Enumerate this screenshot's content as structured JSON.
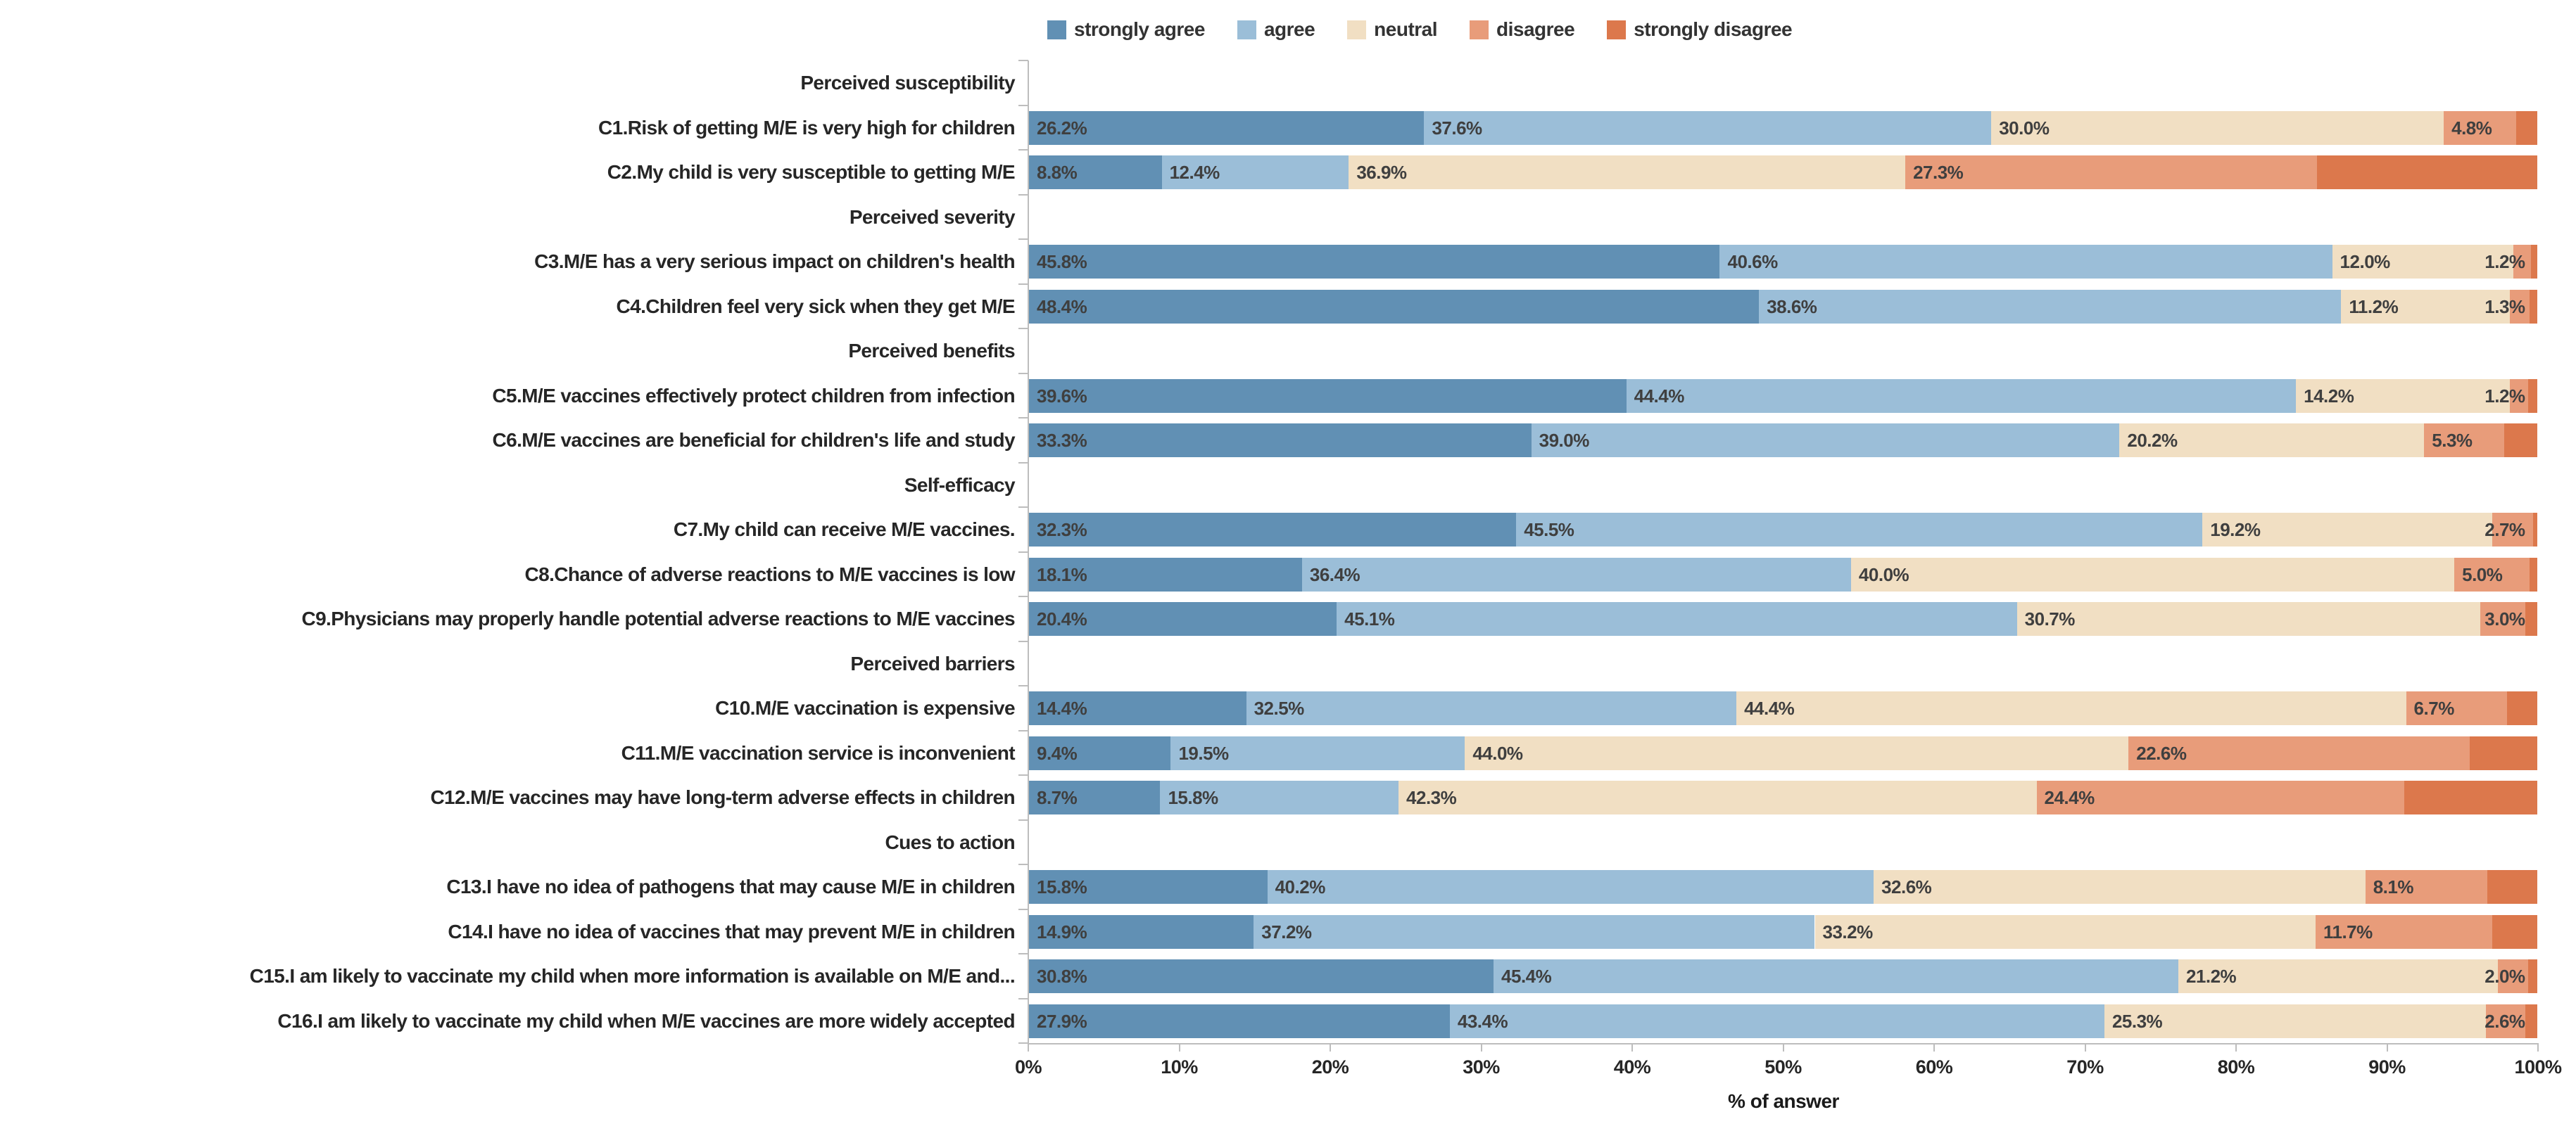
{
  "legend": {
    "items": [
      {
        "label": "strongly agree",
        "color": "#6190b4"
      },
      {
        "label": "agree",
        "color": "#9bbed8"
      },
      {
        "label": "neutral",
        "color": "#f1dfc3"
      },
      {
        "label": "disagree",
        "color": "#e89c7a"
      },
      {
        "label": "strongly disagree",
        "color": "#dc784c"
      }
    ]
  },
  "chart_data": {
    "type": "bar",
    "stacked": true,
    "orientation": "horizontal",
    "xlabel": "% of answer",
    "xlim": [
      0,
      100
    ],
    "grid": false,
    "legend_position": "top",
    "series_names": [
      "strongly agree",
      "agree",
      "neutral",
      "disagree",
      "strongly disagree"
    ],
    "axis": {
      "ticks": [
        "0%",
        "10%",
        "20%",
        "30%",
        "40%",
        "50%",
        "60%",
        "70%",
        "80%",
        "90%",
        "100%"
      ],
      "title": "% of answer"
    },
    "rows": [
      {
        "type": "header",
        "label": "Perceived susceptibility"
      },
      {
        "type": "item",
        "label": "C1.Risk of getting M/E is very high for children",
        "values": [
          26.2,
          37.6,
          30.0,
          4.8,
          1.4
        ],
        "value_labels": [
          "26.2%",
          "37.6%",
          "30.0%",
          "4.8%"
        ]
      },
      {
        "type": "item",
        "label": "C2.My child is very susceptible to getting M/E",
        "values": [
          8.8,
          12.4,
          36.9,
          27.3,
          14.6
        ],
        "value_labels": [
          "8.8%",
          "12.4%",
          "36.9%",
          "27.3%"
        ]
      },
      {
        "type": "header",
        "label": "Perceived severity"
      },
      {
        "type": "item",
        "label": "C3.M/E has a very serious impact on children's health",
        "values": [
          45.8,
          40.6,
          12.0,
          1.2,
          0.4
        ],
        "value_labels": [
          "45.8%",
          "40.6%",
          "12.0%",
          "1.2%"
        ]
      },
      {
        "type": "item",
        "label": "C4.Children feel very sick when they get M/E",
        "values": [
          48.4,
          38.6,
          11.2,
          1.3,
          0.5
        ],
        "value_labels": [
          "48.4%",
          "38.6%",
          "11.2%",
          "1.3%"
        ]
      },
      {
        "type": "header",
        "label": "Perceived benefits"
      },
      {
        "type": "item",
        "label": "C5.M/E vaccines effectively protect children from infection",
        "values": [
          39.6,
          44.4,
          14.2,
          1.2,
          0.6
        ],
        "value_labels": [
          "39.6%",
          "44.4%",
          "14.2%",
          "1.2%"
        ]
      },
      {
        "type": "item",
        "label": "C6.M/E vaccines are beneficial for children's life and study",
        "values": [
          33.3,
          39.0,
          20.2,
          5.3,
          2.2
        ],
        "value_labels": [
          "33.3%",
          "39.0%",
          "20.2%",
          "5.3%"
        ]
      },
      {
        "type": "header",
        "label": "Self-efficacy"
      },
      {
        "type": "item",
        "label": "C7.My child can receive M/E vaccines.",
        "values": [
          32.3,
          45.5,
          19.2,
          2.7,
          0.3
        ],
        "value_labels": [
          "32.3%",
          "45.5%",
          "19.2%",
          "2.7%"
        ]
      },
      {
        "type": "item",
        "label": "C8.Chance of adverse reactions to M/E vaccines is low",
        "values": [
          18.1,
          36.4,
          40.0,
          5.0,
          0.5
        ],
        "value_labels": [
          "18.1%",
          "36.4%",
          "40.0%",
          "5.0%"
        ]
      },
      {
        "type": "item",
        "label": "C9.Physicians may properly handle potential adverse reactions to M/E vaccines",
        "values": [
          20.4,
          45.1,
          30.7,
          3.0,
          0.8
        ],
        "value_labels": [
          "20.4%",
          "45.1%",
          "30.7%",
          "3.0%"
        ]
      },
      {
        "type": "header",
        "label": "Perceived barriers"
      },
      {
        "type": "item",
        "label": "C10.M/E vaccination is expensive",
        "values": [
          14.4,
          32.5,
          44.4,
          6.7,
          2.0
        ],
        "value_labels": [
          "14.4%",
          "32.5%",
          "44.4%",
          "6.7%"
        ]
      },
      {
        "type": "item",
        "label": "C11.M/E vaccination service is inconvenient",
        "values": [
          9.4,
          19.5,
          44.0,
          22.6,
          4.5
        ],
        "value_labels": [
          "9.4%",
          "19.5%",
          "44.0%",
          "22.6%"
        ]
      },
      {
        "type": "item",
        "label": "C12.M/E vaccines may have long-term adverse effects in children",
        "values": [
          8.7,
          15.8,
          42.3,
          24.4,
          8.8
        ],
        "value_labels": [
          "8.7%",
          "15.8%",
          "42.3%",
          "24.4%"
        ]
      },
      {
        "type": "header",
        "label": "Cues to action"
      },
      {
        "type": "item",
        "label": "C13.I have no idea of pathogens that may cause M/E in children",
        "values": [
          15.8,
          40.2,
          32.6,
          8.1,
          3.3
        ],
        "value_labels": [
          "15.8%",
          "40.2%",
          "32.6%",
          "8.1%"
        ]
      },
      {
        "type": "item",
        "label": "C14.I have no idea of vaccines that may prevent M/E in children",
        "values": [
          14.9,
          37.2,
          33.2,
          11.7,
          3.0
        ],
        "value_labels": [
          "14.9%",
          "37.2%",
          "33.2%",
          "11.7%"
        ]
      },
      {
        "type": "item",
        "label": "C15.I am likely to vaccinate my child when more information is available on M/E and...",
        "values": [
          30.8,
          45.4,
          21.2,
          2.0,
          0.6
        ],
        "value_labels": [
          "30.8%",
          "45.4%",
          "21.2%",
          "2.0%"
        ]
      },
      {
        "type": "item",
        "label": "C16.I am likely to vaccinate my child when M/E vaccines are more widely accepted",
        "values": [
          27.9,
          43.4,
          25.3,
          2.6,
          0.8
        ],
        "value_labels": [
          "27.9%",
          "43.4%",
          "25.3%",
          "2.6%"
        ]
      }
    ]
  }
}
